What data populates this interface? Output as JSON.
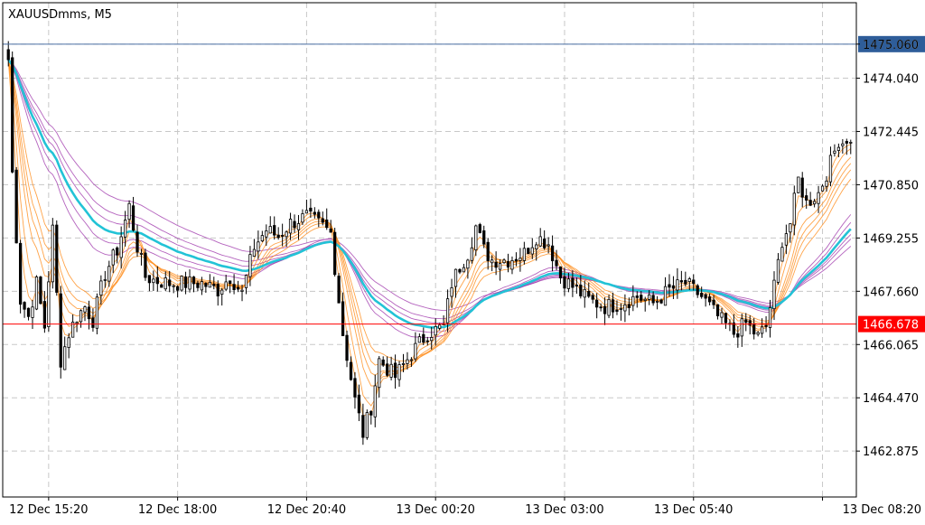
{
  "chart_title": "XAUUSDmms, M5",
  "colors": {
    "background": "#ffffff",
    "grid": "#c8c8c8",
    "axis": "#000000",
    "candle_up_border": "#000000",
    "candle_up_fill": "#ffffff",
    "candle_down_fill": "#000000",
    "ask_line": "#4a6fa5",
    "ask_label_bg": "#2e5d99",
    "bid_line": "#ff0000",
    "bid_label_bg": "#ff0000",
    "gmma_short": "#ff8c1a",
    "gmma_long": "#9b2fa8",
    "gmma_key": "#22c3d6"
  },
  "chart_data": {
    "type": "candlestick",
    "symbol": "XAUUSDmms",
    "timeframe": "M5",
    "ylim": [
      1461.5,
      1476.3
    ],
    "y_ticks": [
      "1475.060",
      "1474.040",
      "1472.445",
      "1470.850",
      "1469.255",
      "1467.660",
      "1466.065",
      "1464.470",
      "1462.875"
    ],
    "x_ticks": [
      "12 Dec 15:20",
      "12 Dec 18:00",
      "12 Dec 20:40",
      "13 Dec 00:20",
      "13 Dec 03:00",
      "13 Dec 05:40",
      "13 Dec 08:20"
    ],
    "x_tick_bar_index": [
      10,
      42,
      74,
      106,
      138,
      170,
      202
    ],
    "grid": true,
    "ask_price": "1475.060",
    "bid_price": "1466.678",
    "close_anchors": [
      [
        0,
        1474.6
      ],
      [
        1,
        1471.2
      ],
      [
        3,
        1467.4
      ],
      [
        5,
        1466.9
      ],
      [
        7,
        1467.9
      ],
      [
        9,
        1466.6
      ],
      [
        11,
        1469.5
      ],
      [
        13,
        1465.6
      ],
      [
        15,
        1466.4
      ],
      [
        17,
        1466.9
      ],
      [
        19,
        1467.2
      ],
      [
        21,
        1466.8
      ],
      [
        24,
        1468.2
      ],
      [
        27,
        1468.9
      ],
      [
        30,
        1470.2
      ],
      [
        32,
        1469.0
      ],
      [
        34,
        1468.1
      ],
      [
        36,
        1468.0
      ],
      [
        40,
        1467.9
      ],
      [
        44,
        1467.9
      ],
      [
        48,
        1467.9
      ],
      [
        52,
        1467.7
      ],
      [
        55,
        1468.1
      ],
      [
        58,
        1467.6
      ],
      [
        61,
        1469.0
      ],
      [
        64,
        1469.5
      ],
      [
        67,
        1469.3
      ],
      [
        70,
        1469.7
      ],
      [
        74,
        1469.9
      ],
      [
        78,
        1469.6
      ],
      [
        80,
        1469.4
      ],
      [
        83,
        1466.4
      ],
      [
        86,
        1464.4
      ],
      [
        88,
        1463.4
      ],
      [
        90,
        1464.2
      ],
      [
        92,
        1465.6
      ],
      [
        96,
        1465.1
      ],
      [
        100,
        1465.8
      ],
      [
        104,
        1466.4
      ],
      [
        108,
        1466.6
      ],
      [
        110,
        1467.9
      ],
      [
        112,
        1468.4
      ],
      [
        114,
        1468.8
      ],
      [
        116,
        1469.6
      ],
      [
        118,
        1468.9
      ],
      [
        120,
        1468.6
      ],
      [
        124,
        1468.6
      ],
      [
        128,
        1468.8
      ],
      [
        131,
        1469.3
      ],
      [
        134,
        1469.1
      ],
      [
        137,
        1468.1
      ],
      [
        140,
        1467.8
      ],
      [
        144,
        1467.4
      ],
      [
        148,
        1467.2
      ],
      [
        152,
        1467.3
      ],
      [
        156,
        1467.5
      ],
      [
        160,
        1467.3
      ],
      [
        164,
        1467.7
      ],
      [
        168,
        1467.9
      ],
      [
        172,
        1467.5
      ],
      [
        176,
        1466.9
      ],
      [
        180,
        1466.4
      ],
      [
        183,
        1466.7
      ],
      [
        186,
        1466.3
      ],
      [
        188,
        1466.6
      ],
      [
        190,
        1467.8
      ],
      [
        192,
        1469.2
      ],
      [
        194,
        1469.7
      ],
      [
        196,
        1471.0
      ],
      [
        198,
        1470.3
      ],
      [
        201,
        1470.6
      ],
      [
        204,
        1471.5
      ],
      [
        206,
        1472.2
      ]
    ],
    "gmma_short_periods": [
      3,
      5,
      8,
      10,
      12,
      15
    ],
    "gmma_long_periods": [
      30,
      35,
      40,
      45,
      50,
      60
    ],
    "gmma_key_period": 40
  }
}
